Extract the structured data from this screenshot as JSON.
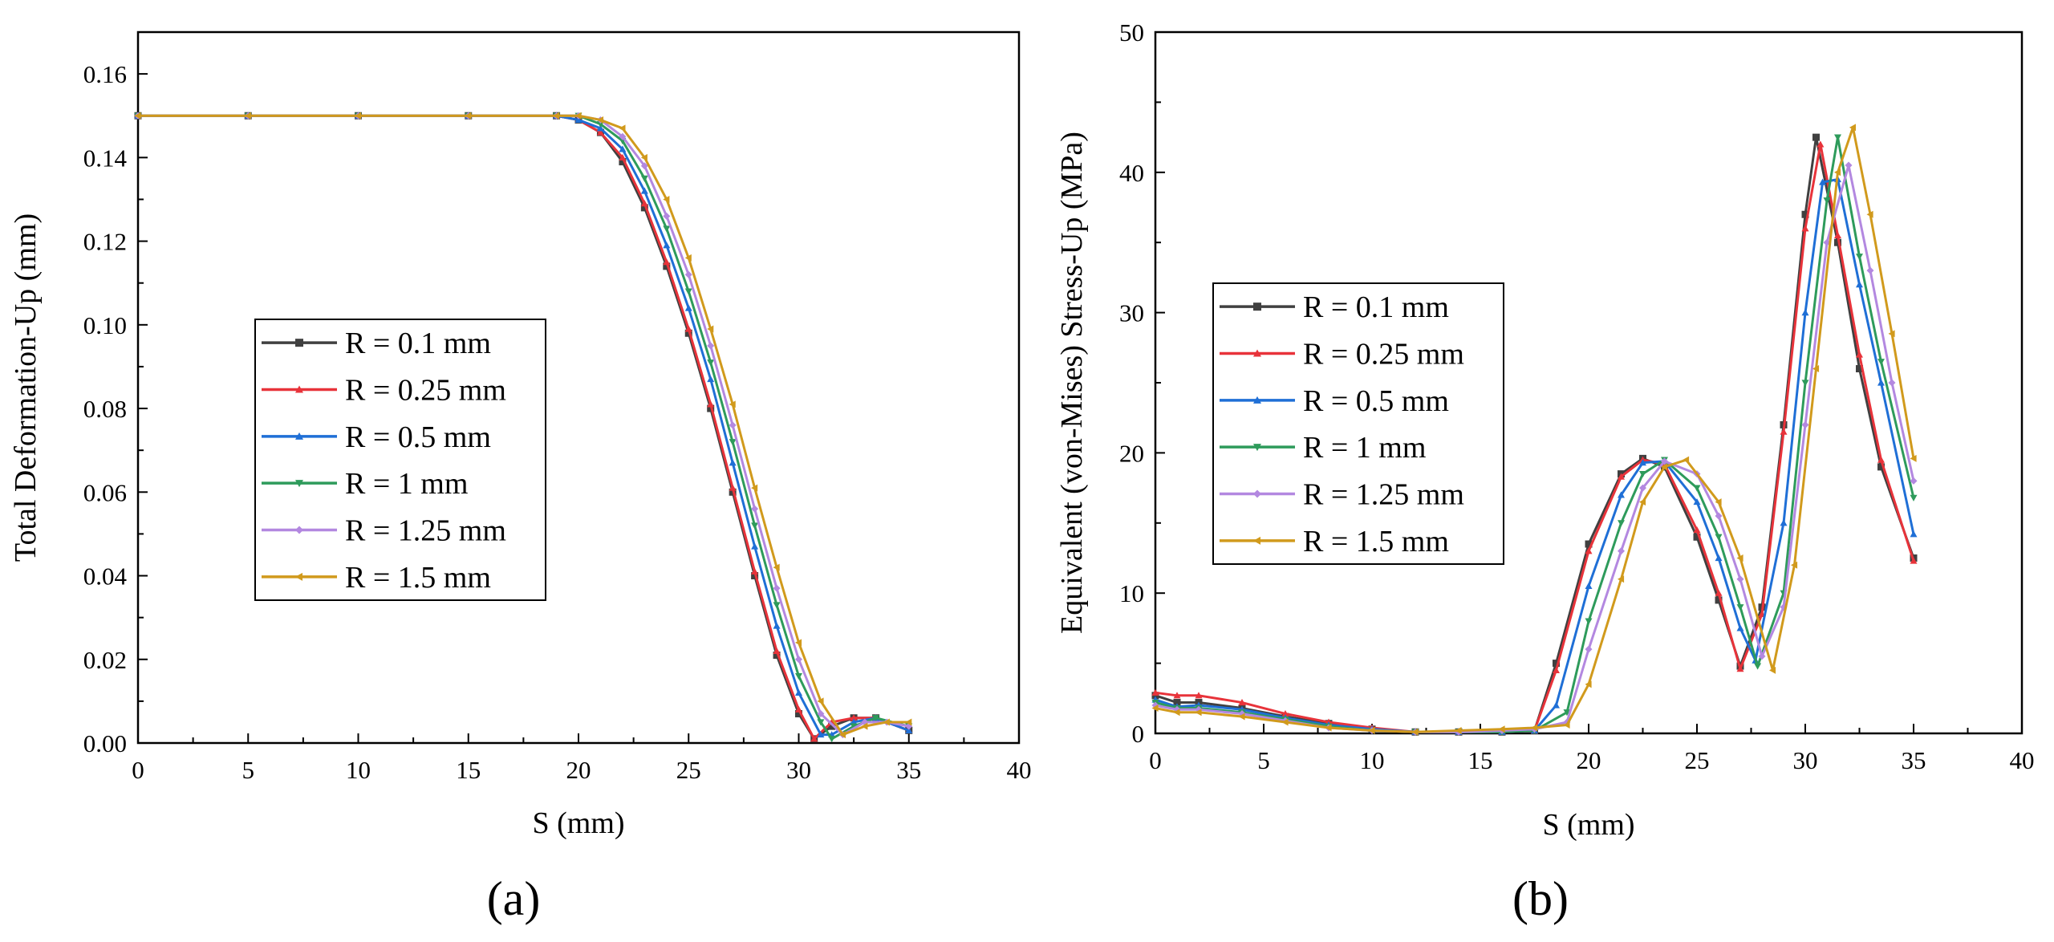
{
  "figure": {
    "panel_labels": [
      "(a)",
      "(b)"
    ]
  },
  "chart_data": [
    {
      "type": "line",
      "panel": "(a)",
      "xlabel": "S (mm)",
      "ylabel": "Total Deformation-Up (mm)",
      "xlim": [
        0,
        40
      ],
      "ylim": [
        0,
        0.17
      ],
      "xticks": [
        0,
        5,
        10,
        15,
        20,
        25,
        30,
        35,
        40
      ],
      "yticks": [
        0.0,
        0.02,
        0.04,
        0.06,
        0.08,
        0.1,
        0.12,
        0.14,
        0.16
      ],
      "ytick_decimals": 2,
      "legend": "center-left",
      "series": [
        {
          "name": "R = 0.1 mm",
          "color": "#404040",
          "marker": "square",
          "x": [
            0,
            5,
            10,
            15,
            19,
            20,
            21,
            22,
            23,
            24,
            25,
            26,
            27,
            28,
            29,
            30,
            30.7,
            31.5,
            32.5,
            33.5,
            35
          ],
          "y": [
            0.15,
            0.15,
            0.15,
            0.15,
            0.15,
            0.149,
            0.146,
            0.139,
            0.128,
            0.114,
            0.098,
            0.08,
            0.06,
            0.04,
            0.021,
            0.007,
            0.001,
            0.004,
            0.006,
            0.006,
            0.003
          ]
        },
        {
          "name": "R = 0.25 mm",
          "color": "#e8333a",
          "marker": "triangle-up",
          "x": [
            0,
            5,
            10,
            15,
            19,
            20,
            21,
            22,
            23,
            24,
            25,
            26,
            27,
            28,
            29,
            30,
            30.7,
            31.5,
            32.5,
            33.5,
            35
          ],
          "y": [
            0.15,
            0.15,
            0.15,
            0.15,
            0.15,
            0.149,
            0.146,
            0.14,
            0.129,
            0.115,
            0.099,
            0.081,
            0.061,
            0.041,
            0.022,
            0.008,
            0.001,
            0.005,
            0.006,
            0.006,
            0.003
          ]
        },
        {
          "name": "R = 0.5 mm",
          "color": "#1f6fd6",
          "marker": "triangle-up",
          "x": [
            0,
            5,
            10,
            15,
            19,
            20,
            21,
            22,
            23,
            24,
            25,
            26,
            27,
            28,
            29,
            30,
            31,
            31.5,
            32.5,
            33.5,
            35
          ],
          "y": [
            0.15,
            0.15,
            0.15,
            0.15,
            0.15,
            0.149,
            0.147,
            0.142,
            0.132,
            0.119,
            0.104,
            0.087,
            0.067,
            0.047,
            0.028,
            0.012,
            0.002,
            0.002,
            0.005,
            0.006,
            0.003
          ]
        },
        {
          "name": "R = 1 mm",
          "color": "#2e9b5b",
          "marker": "triangle-down",
          "x": [
            0,
            5,
            10,
            15,
            19,
            20,
            21,
            22,
            23,
            24,
            25,
            26,
            27,
            28,
            29,
            30,
            31,
            31.5,
            32.5,
            33.5,
            35
          ],
          "y": [
            0.15,
            0.15,
            0.15,
            0.15,
            0.15,
            0.15,
            0.148,
            0.144,
            0.135,
            0.123,
            0.108,
            0.091,
            0.072,
            0.052,
            0.033,
            0.016,
            0.005,
            0.001,
            0.004,
            0.006,
            0.004
          ]
        },
        {
          "name": "R = 1.25 mm",
          "color": "#b388e0",
          "marker": "diamond",
          "x": [
            0,
            5,
            10,
            15,
            19,
            20,
            21,
            22,
            23,
            24,
            25,
            26,
            27,
            28,
            29,
            30,
            31,
            32,
            33,
            34,
            35
          ],
          "y": [
            0.15,
            0.15,
            0.15,
            0.15,
            0.15,
            0.15,
            0.149,
            0.145,
            0.138,
            0.126,
            0.112,
            0.095,
            0.076,
            0.056,
            0.037,
            0.02,
            0.007,
            0.002,
            0.005,
            0.005,
            0.004
          ]
        },
        {
          "name": "R = 1.5 mm",
          "color": "#d19a1c",
          "marker": "left-triangle",
          "x": [
            0,
            5,
            10,
            15,
            19,
            20,
            21,
            22,
            23,
            24,
            25,
            26,
            27,
            28,
            29,
            30,
            31,
            32,
            33,
            34,
            35
          ],
          "y": [
            0.15,
            0.15,
            0.15,
            0.15,
            0.15,
            0.15,
            0.149,
            0.147,
            0.14,
            0.13,
            0.116,
            0.099,
            0.081,
            0.061,
            0.042,
            0.024,
            0.01,
            0.002,
            0.004,
            0.005,
            0.005
          ]
        }
      ]
    },
    {
      "type": "line",
      "panel": "(b)",
      "xlabel": "S (mm)",
      "ylabel": "Equivalent (von-Mises) Stress-Up (MPa)",
      "xlim": [
        0,
        40
      ],
      "ylim": [
        0,
        50
      ],
      "xticks": [
        0,
        5,
        10,
        15,
        20,
        25,
        30,
        35,
        40
      ],
      "yticks": [
        0,
        10,
        20,
        30,
        40,
        50
      ],
      "ytick_decimals": 0,
      "legend": "center-left",
      "series": [
        {
          "name": "R = 0.1 mm",
          "color": "#404040",
          "marker": "square",
          "x": [
            0,
            1,
            2,
            4,
            6,
            8,
            10,
            12,
            14,
            16,
            17.5,
            18.5,
            20,
            21.5,
            22.5,
            23.5,
            25,
            26,
            27,
            28,
            29,
            30,
            30.5,
            31.5,
            32.5,
            33.5,
            35
          ],
          "y": [
            2.7,
            2.2,
            2.2,
            1.8,
            1.2,
            0.7,
            0.3,
            0.1,
            0.1,
            0.1,
            0.2,
            5.0,
            13.5,
            18.5,
            19.6,
            19.0,
            14.0,
            9.5,
            4.8,
            9.0,
            22.0,
            37.0,
            42.5,
            35.0,
            26.0,
            19.0,
            12.5
          ]
        },
        {
          "name": "R = 0.25 mm",
          "color": "#e8333a",
          "marker": "triangle-up",
          "x": [
            0,
            1,
            2,
            4,
            6,
            8,
            10,
            12,
            14,
            16,
            17.5,
            18.5,
            20,
            21.5,
            22.5,
            23.5,
            25,
            26,
            27,
            28,
            29,
            30,
            30.7,
            31.5,
            32.5,
            33.5,
            35
          ],
          "y": [
            2.9,
            2.7,
            2.7,
            2.2,
            1.4,
            0.8,
            0.4,
            0.1,
            0.1,
            0.1,
            0.2,
            4.5,
            13.0,
            18.3,
            19.5,
            19.2,
            14.5,
            10.0,
            4.6,
            8.5,
            21.5,
            36.0,
            42.0,
            35.5,
            27.0,
            19.5,
            12.3
          ]
        },
        {
          "name": "R = 0.5 mm",
          "color": "#1f6fd6",
          "marker": "triangle-up",
          "x": [
            0,
            1,
            2,
            4,
            6,
            8,
            10,
            12,
            14,
            16,
            17.5,
            18.5,
            20,
            21.5,
            22.5,
            23.5,
            25,
            26,
            27,
            27.7,
            29,
            30,
            30.8,
            31.5,
            32.5,
            33.5,
            35
          ],
          "y": [
            2.4,
            1.9,
            2.0,
            1.7,
            1.1,
            0.6,
            0.3,
            0.1,
            0.1,
            0.1,
            0.2,
            2.0,
            10.5,
            17.0,
            19.3,
            19.4,
            16.5,
            12.5,
            7.5,
            5.2,
            15.0,
            30.0,
            39.3,
            39.5,
            32.0,
            25.0,
            14.2
          ]
        },
        {
          "name": "R = 1 mm",
          "color": "#2e9b5b",
          "marker": "triangle-down",
          "x": [
            0,
            1,
            2,
            4,
            6,
            8,
            10,
            12,
            14,
            16,
            17.5,
            19,
            20,
            21.5,
            22.5,
            23.5,
            25,
            26,
            27,
            27.8,
            29,
            30,
            31,
            31.5,
            32.5,
            33.5,
            35
          ],
          "y": [
            2.2,
            1.8,
            1.8,
            1.5,
            1.0,
            0.5,
            0.2,
            0.1,
            0.1,
            0.1,
            0.2,
            1.5,
            8.0,
            15.0,
            18.5,
            19.5,
            17.5,
            14.0,
            9.0,
            4.8,
            10.0,
            25.0,
            38.0,
            42.5,
            34.0,
            26.5,
            16.8
          ]
        },
        {
          "name": "R = 1.25 mm",
          "color": "#b388e0",
          "marker": "diamond",
          "x": [
            0,
            1,
            2,
            4,
            6,
            8,
            10,
            12,
            14,
            16,
            17.5,
            19,
            20,
            21.5,
            22.5,
            23.5,
            25,
            26,
            27,
            28,
            29,
            30,
            31,
            32,
            33,
            34,
            35
          ],
          "y": [
            2.0,
            1.7,
            1.7,
            1.4,
            0.9,
            0.4,
            0.2,
            0.1,
            0.1,
            0.2,
            0.3,
            0.8,
            6.0,
            13.0,
            17.5,
            19.4,
            18.5,
            15.5,
            11.0,
            5.5,
            9.0,
            22.0,
            35.0,
            40.5,
            33.0,
            25.0,
            18.0
          ]
        },
        {
          "name": "R = 1.5 mm",
          "color": "#d19a1c",
          "marker": "left-triangle",
          "x": [
            0,
            1,
            2,
            4,
            6,
            8,
            10,
            12,
            14,
            16,
            17.5,
            19,
            20,
            21.5,
            22.5,
            23.5,
            24.5,
            26,
            27,
            28.5,
            29.5,
            30.5,
            31.5,
            32.2,
            33,
            34,
            35
          ],
          "y": [
            1.8,
            1.5,
            1.5,
            1.2,
            0.8,
            0.4,
            0.2,
            0.1,
            0.2,
            0.3,
            0.4,
            0.6,
            3.5,
            11.0,
            16.5,
            19.0,
            19.5,
            16.5,
            12.5,
            4.5,
            12.0,
            26.0,
            40.0,
            43.2,
            37.0,
            28.5,
            19.6
          ]
        }
      ]
    }
  ]
}
